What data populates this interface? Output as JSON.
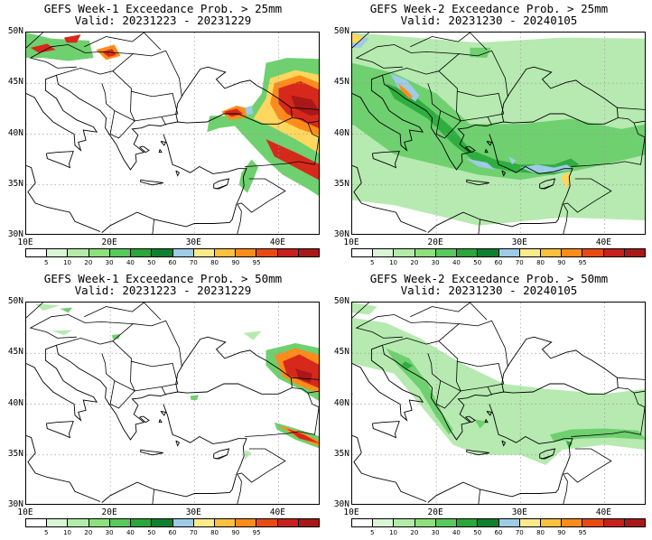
{
  "panels": [
    {
      "line1": "GEFS Week-1 Exceedance Prob. > 25mm",
      "line2": "Valid: 20231223 - 20231229"
    },
    {
      "line1": "GEFS Week-2 Exceedance Prob. > 25mm",
      "line2": "Valid: 20231230 - 20240105"
    },
    {
      "line1": "GEFS Week-1 Exceedance Prob. > 50mm",
      "line2": "Valid: 20231223 - 20231229"
    },
    {
      "line1": "GEFS Week-2 Exceedance Prob. > 50mm",
      "line2": "Valid: 20231230 - 20240105"
    }
  ],
  "axes": {
    "x_ticks": [
      "10E",
      "20E",
      "30E",
      "40E"
    ],
    "y_ticks": [
      "50N",
      "45N",
      "40N",
      "35N",
      "30N"
    ],
    "lon_range": [
      10,
      45
    ],
    "lat_range": [
      30,
      50
    ]
  },
  "colorbar": {
    "labels": [
      "5",
      "10",
      "20",
      "30",
      "40",
      "50",
      "60",
      "70",
      "80",
      "90",
      "95"
    ],
    "colors": [
      "#ffffff",
      "#d9f5d5",
      "#b2eca8",
      "#8ee07d",
      "#58c95a",
      "#2aa63a",
      "#0f8030",
      "#9ecbe6",
      "#ffea8a",
      "#ffbf3f",
      "#ff8c1a",
      "#e84a14",
      "#c8201c",
      "#a81818"
    ]
  },
  "layer_colors": {
    "green_light": "#b6eab0",
    "green_mid": "#6fd06f",
    "green_dark": "#2fae40",
    "blue": "#9ecbe6",
    "yellow": "#ffd75e",
    "orange": "#ff8c1a",
    "red": "#d6291b",
    "dark_red": "#a81818"
  }
}
